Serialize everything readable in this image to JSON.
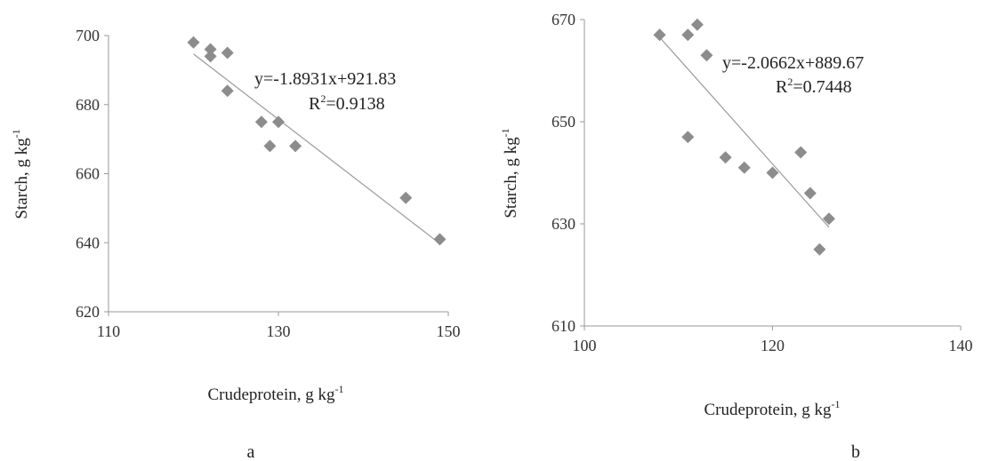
{
  "chart_data": [
    {
      "type": "scatter",
      "panel_label": "a",
      "xlabel": "Crudeprotein, g kg",
      "xlabel_sup": "-1",
      "ylabel": "Starch, g  kg",
      "ylabel_sup": "-1",
      "xlim": [
        110,
        150
      ],
      "ylim": [
        620,
        700
      ],
      "xticks": [
        110,
        130,
        150
      ],
      "yticks": [
        620,
        640,
        660,
        680,
        700
      ],
      "equation": "y=-1.8931x+921.83",
      "r2_prefix": "R",
      "r2_sup": "2",
      "r2_value": "=0.9138",
      "trendline": {
        "slope": -1.8931,
        "intercept": 921.83,
        "x_range": [
          120,
          149
        ]
      },
      "marker_color": "#8c8c8c",
      "line_color": "#9a9a9a",
      "points": [
        {
          "x": 120,
          "y": 698
        },
        {
          "x": 122,
          "y": 696
        },
        {
          "x": 122,
          "y": 694
        },
        {
          "x": 124,
          "y": 695
        },
        {
          "x": 124,
          "y": 684
        },
        {
          "x": 128,
          "y": 675
        },
        {
          "x": 130,
          "y": 675
        },
        {
          "x": 129,
          "y": 668
        },
        {
          "x": 132,
          "y": 668
        },
        {
          "x": 145,
          "y": 653
        },
        {
          "x": 149,
          "y": 641
        }
      ]
    },
    {
      "type": "scatter",
      "panel_label": "b",
      "xlabel": "Crudeprotein, g kg",
      "xlabel_sup": "-1",
      "ylabel": "Starch, g  kg",
      "ylabel_sup": "-1",
      "xlim": [
        100,
        140
      ],
      "ylim": [
        610,
        670
      ],
      "xticks": [
        100,
        120,
        140
      ],
      "yticks": [
        610,
        630,
        650,
        670
      ],
      "equation": "y=-2.0662x+889.67",
      "r2_prefix": "R",
      "r2_sup": "2",
      "r2_value": "=0.7448",
      "trendline": {
        "slope": -2.0662,
        "intercept": 889.67,
        "x_range": [
          108,
          126
        ]
      },
      "marker_color": "#8c8c8c",
      "line_color": "#9a9a9a",
      "points": [
        {
          "x": 108,
          "y": 667
        },
        {
          "x": 111,
          "y": 667
        },
        {
          "x": 112,
          "y": 669
        },
        {
          "x": 113,
          "y": 663
        },
        {
          "x": 111,
          "y": 647
        },
        {
          "x": 115,
          "y": 643
        },
        {
          "x": 117,
          "y": 641
        },
        {
          "x": 120,
          "y": 640
        },
        {
          "x": 123,
          "y": 644
        },
        {
          "x": 124,
          "y": 636
        },
        {
          "x": 126,
          "y": 631
        },
        {
          "x": 125,
          "y": 625
        }
      ]
    }
  ]
}
